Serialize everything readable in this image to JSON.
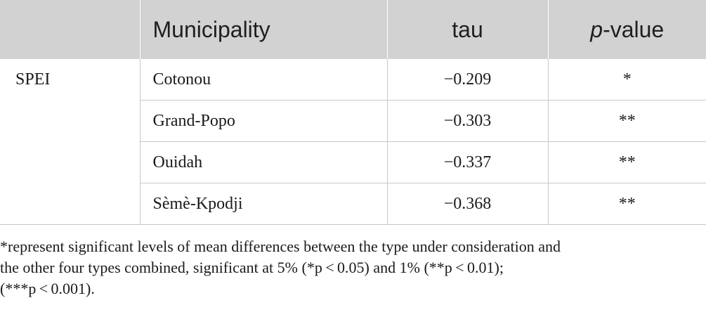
{
  "table": {
    "headers": {
      "group": "",
      "municipality": "Municipality",
      "tau": "tau",
      "pvalue_italic": "p",
      "pvalue_rest": "-value"
    },
    "group_label": "SPEI",
    "rows": [
      {
        "municipality": "Cotonou",
        "tau": "−0.209",
        "pvalue": "*"
      },
      {
        "municipality": "Grand-Popo",
        "tau": "−0.303",
        "pvalue": "**"
      },
      {
        "municipality": "Ouidah",
        "tau": "−0.337",
        "pvalue": "**"
      },
      {
        "municipality": "Sèmè-Kpodji",
        "tau": "−0.368",
        "pvalue": "**"
      }
    ]
  },
  "footnote": {
    "line1": "*represent significant levels of mean differences between the type under consideration and",
    "line2": "the other four types combined, significant at 5% (*p < 0.05) and 1% (**p < 0.01);",
    "line3": "(***p < 0.001)."
  },
  "colors": {
    "header_bg": "#d2d2d2",
    "rule": "#c8c8c8",
    "text": "#1a1a1a"
  }
}
